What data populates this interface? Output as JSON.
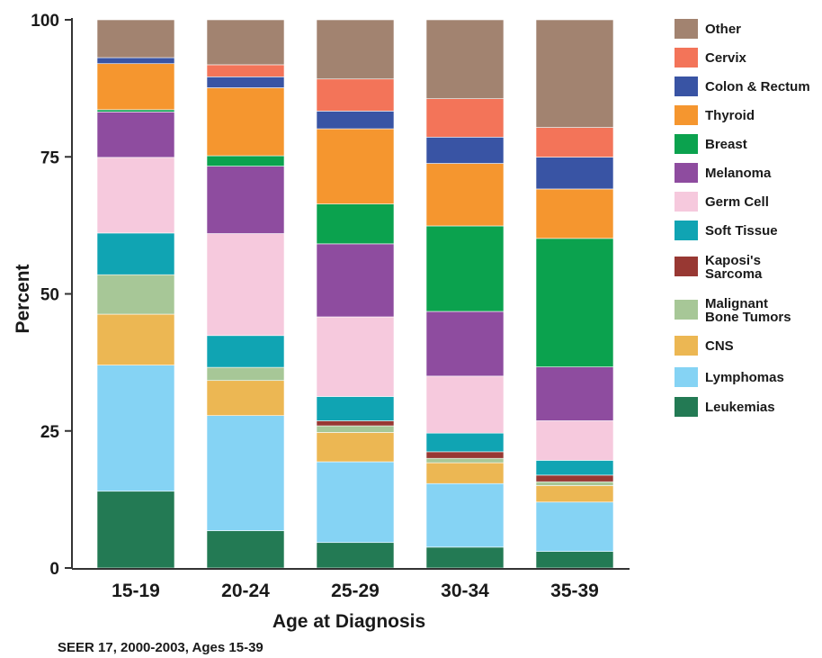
{
  "chart_data": {
    "type": "bar",
    "stacked": true,
    "categories": [
      "15-19",
      "20-24",
      "25-29",
      "30-34",
      "35-39"
    ],
    "xlabel": "Age at Diagnosis",
    "ylabel": "Percent",
    "ylim": [
      0,
      100
    ],
    "yticks": [
      0,
      25,
      50,
      75,
      100
    ],
    "source": "SEER 17, 2000-2003, Ages 15-39",
    "legend_position": "right",
    "series": [
      {
        "name": "Leukemias",
        "color": "#237a54",
        "values": [
          14,
          6.8,
          4.6,
          3.8,
          3.0
        ]
      },
      {
        "name": "Lymphomas",
        "color": "#85d3f4",
        "values": [
          23,
          21,
          14.6,
          11.6,
          9.0
        ]
      },
      {
        "name": "CNS",
        "color": "#ecb753",
        "values": [
          9.3,
          6.4,
          5.3,
          3.8,
          3.0
        ]
      },
      {
        "name": "Malignant Bone Tumors",
        "color": "#a7c797",
        "values": [
          7.2,
          2.4,
          1.2,
          0.8,
          0.7
        ]
      },
      {
        "name": "Kaposi's Sarcoma",
        "color": "#983833",
        "values": [
          0,
          0,
          0.9,
          1.2,
          1.2
        ]
      },
      {
        "name": "Soft Tissue",
        "color": "#10a4b3",
        "values": [
          7.6,
          5.8,
          4.4,
          3.4,
          2.7
        ]
      },
      {
        "name": "Germ Cell",
        "color": "#f6c9dd",
        "values": [
          13.8,
          18.6,
          14.4,
          10.4,
          7.2
        ]
      },
      {
        "name": "Melanoma",
        "color": "#8e4c9f",
        "values": [
          8.3,
          12.3,
          13.2,
          11.8,
          9.8
        ]
      },
      {
        "name": "Breast",
        "color": "#0ba24e",
        "values": [
          0.4,
          1.9,
          7.2,
          15.6,
          23.4
        ]
      },
      {
        "name": "Thyroid",
        "color": "#f5962f",
        "values": [
          8.4,
          12.4,
          13.6,
          11.4,
          9.0
        ]
      },
      {
        "name": "Colon & Rectum",
        "color": "#3954a4",
        "values": [
          1.1,
          2.0,
          3.2,
          4.8,
          5.8
        ]
      },
      {
        "name": "Cervix",
        "color": "#f37459",
        "values": [
          0,
          2.2,
          5.8,
          7.0,
          5.4
        ]
      },
      {
        "name": "Other",
        "color": "#a28370",
        "values": [
          6.9,
          8.2,
          10.7,
          14.4,
          19.6
        ]
      }
    ],
    "legend_order": [
      "Other",
      "Cervix",
      "Colon & Rectum",
      "Thyroid",
      "Breast",
      "Melanoma",
      "Germ Cell",
      "Soft Tissue",
      "Kaposi's Sarcoma",
      "Malignant Bone Tumors",
      "CNS",
      "Lymphomas",
      "Leukemias"
    ],
    "legend_lines": {
      "Kaposi's Sarcoma": [
        "Kaposi's",
        "Sarcoma"
      ],
      "Malignant Bone Tumors": [
        "Malignant",
        "Bone Tumors"
      ]
    }
  }
}
